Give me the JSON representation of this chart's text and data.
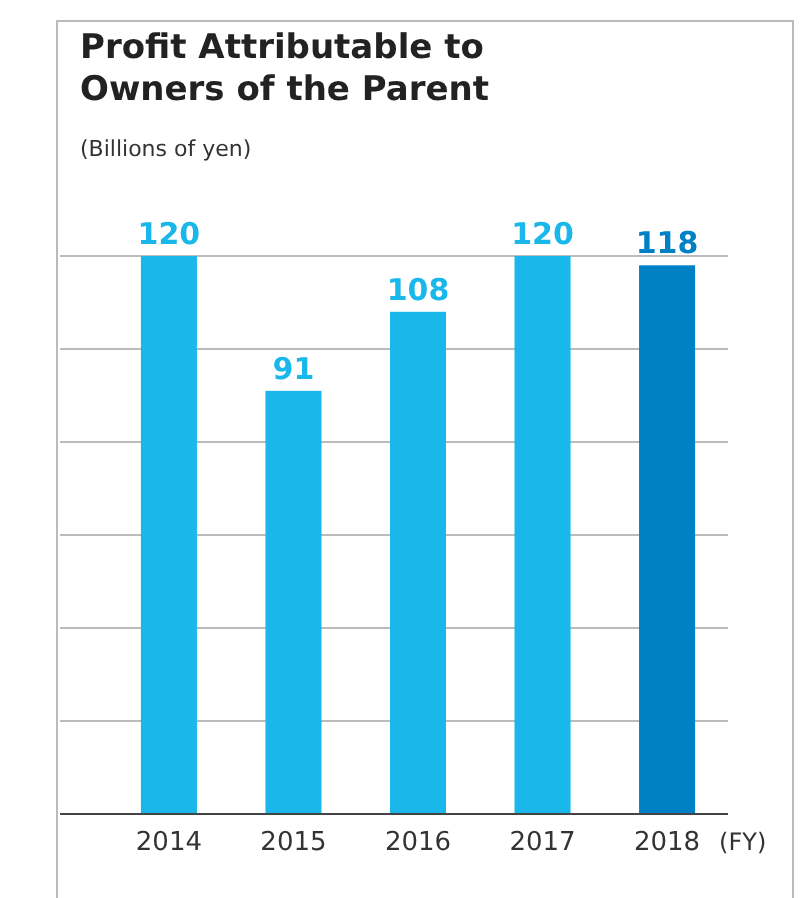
{
  "chart_data": {
    "type": "bar",
    "title": "Profit Attributable to Owners of the Parent",
    "subtitle": "(Billions of yen)",
    "xlabel": "(FY)",
    "categories": [
      "2014",
      "2015",
      "2016",
      "2017",
      "2018"
    ],
    "values": [
      120,
      91,
      108,
      120,
      118
    ],
    "colors": [
      "#1ab8ea",
      "#1ab8ea",
      "#1ab8ea",
      "#1ab8ea",
      "#0081c6"
    ],
    "ylim": [
      0,
      120
    ],
    "yticks": [
      {
        "value": 20,
        "label": null
      },
      {
        "value": 40,
        "label": null
      },
      {
        "value": 60,
        "label": null
      },
      {
        "value": 80,
        "label": null
      },
      {
        "value": 100,
        "label": null
      },
      {
        "value": 120,
        "label": null
      }
    ],
    "grid": "y",
    "data_labels": true,
    "tick_labels": "x"
  }
}
